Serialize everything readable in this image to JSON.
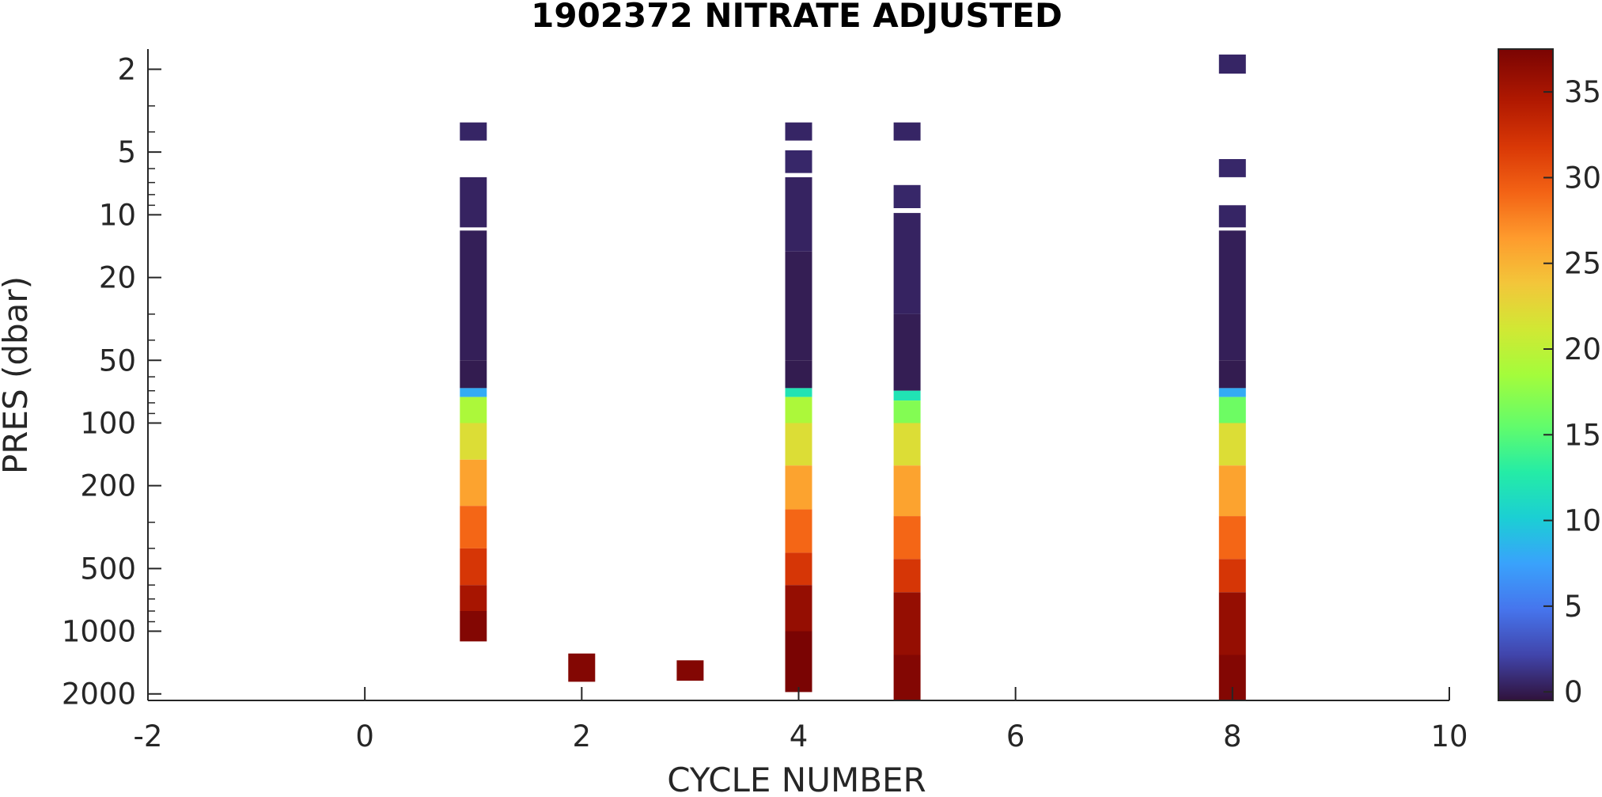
{
  "chart_data": {
    "type": "heatmap",
    "title": "1902372  NITRATE ADJUSTED",
    "xlabel": "CYCLE NUMBER",
    "ylabel": "PRES (dbar)",
    "xlim": [
      -2,
      10
    ],
    "ylim": [
      1.6,
      2150
    ],
    "y_scale": "log",
    "y_reversed": true,
    "x_ticks": [
      -2,
      0,
      2,
      4,
      6,
      8,
      10
    ],
    "x_tick_labels": [
      "-2",
      "0",
      "2",
      "4",
      "6",
      "8",
      "10"
    ],
    "y_ticks": [
      2,
      5,
      10,
      20,
      50,
      100,
      200,
      500,
      1000,
      2000
    ],
    "y_tick_labels": [
      "2",
      "5",
      "10",
      "20",
      "50",
      "100",
      "200",
      "500",
      "1000",
      "2000"
    ],
    "colorbar": {
      "clim": [
        -0.5,
        37.5
      ],
      "ticks": [
        0,
        5,
        10,
        15,
        20,
        25,
        30,
        35
      ],
      "tick_labels": [
        "0",
        "5",
        "10",
        "15",
        "20",
        "25",
        "30",
        "35"
      ],
      "colormap": "turbo",
      "location": "right"
    },
    "profiles": [
      {
        "cycle": 1,
        "segments": [
          {
            "p_top": 3.6,
            "p_bot": 4.4,
            "value": 0.5
          },
          {
            "p_top": 6.6,
            "p_bot": 11.5,
            "value": 0.4
          },
          {
            "p_top": 11.9,
            "p_bot": 50,
            "value": 0.2
          },
          {
            "p_top": 50,
            "p_bot": 68,
            "value": 0.0
          },
          {
            "p_top": 68,
            "p_bot": 75,
            "value": 8
          },
          {
            "p_top": 75,
            "p_bot": 100,
            "value": 19
          },
          {
            "p_top": 100,
            "p_bot": 150,
            "value": 22
          },
          {
            "p_top": 150,
            "p_bot": 250,
            "value": 26
          },
          {
            "p_top": 250,
            "p_bot": 400,
            "value": 29
          },
          {
            "p_top": 400,
            "p_bot": 600,
            "value": 32
          },
          {
            "p_top": 600,
            "p_bot": 800,
            "value": 35
          },
          {
            "p_top": 800,
            "p_bot": 1120,
            "value": 37
          }
        ]
      },
      {
        "cycle": 2,
        "segments": [
          {
            "p_top": 1280,
            "p_bot": 1750,
            "value": 37
          }
        ]
      },
      {
        "cycle": 3,
        "segments": [
          {
            "p_top": 1380,
            "p_bot": 1730,
            "value": 37
          }
        ]
      },
      {
        "cycle": 4,
        "segments": [
          {
            "p_top": 3.6,
            "p_bot": 4.4,
            "value": 0.5
          },
          {
            "p_top": 4.9,
            "p_bot": 6.3,
            "value": 0.6
          },
          {
            "p_top": 6.6,
            "p_bot": 15,
            "value": 0.4
          },
          {
            "p_top": 15,
            "p_bot": 50,
            "value": 0.1
          },
          {
            "p_top": 50,
            "p_bot": 68,
            "value": 0.0
          },
          {
            "p_top": 68,
            "p_bot": 75,
            "value": 12
          },
          {
            "p_top": 75,
            "p_bot": 100,
            "value": 19
          },
          {
            "p_top": 100,
            "p_bot": 160,
            "value": 22
          },
          {
            "p_top": 160,
            "p_bot": 260,
            "value": 26
          },
          {
            "p_top": 260,
            "p_bot": 420,
            "value": 29
          },
          {
            "p_top": 420,
            "p_bot": 600,
            "value": 32
          },
          {
            "p_top": 600,
            "p_bot": 1000,
            "value": 36
          },
          {
            "p_top": 1000,
            "p_bot": 1960,
            "value": 38
          }
        ]
      },
      {
        "cycle": 5,
        "segments": [
          {
            "p_top": 3.6,
            "p_bot": 4.4,
            "value": 0.5
          },
          {
            "p_top": 7.2,
            "p_bot": 9.3,
            "value": 0.6
          },
          {
            "p_top": 9.8,
            "p_bot": 30,
            "value": 0.4
          },
          {
            "p_top": 30,
            "p_bot": 70,
            "value": 0.1
          },
          {
            "p_top": 70,
            "p_bot": 78,
            "value": 12
          },
          {
            "p_top": 78,
            "p_bot": 100,
            "value": 17
          },
          {
            "p_top": 100,
            "p_bot": 160,
            "value": 22
          },
          {
            "p_top": 160,
            "p_bot": 280,
            "value": 26
          },
          {
            "p_top": 280,
            "p_bot": 450,
            "value": 29
          },
          {
            "p_top": 450,
            "p_bot": 650,
            "value": 32
          },
          {
            "p_top": 650,
            "p_bot": 1300,
            "value": 36
          },
          {
            "p_top": 1300,
            "p_bot": 2150,
            "value": 37
          }
        ]
      },
      {
        "cycle": 8,
        "segments": [
          {
            "p_top": 1.7,
            "p_bot": 2.1,
            "value": 0.5
          },
          {
            "p_top": 5.4,
            "p_bot": 6.6,
            "value": 0.6
          },
          {
            "p_top": 9.0,
            "p_bot": 11.5,
            "value": 0.5
          },
          {
            "p_top": 11.9,
            "p_bot": 50,
            "value": 0.2
          },
          {
            "p_top": 50,
            "p_bot": 68,
            "value": 0.0
          },
          {
            "p_top": 68,
            "p_bot": 75,
            "value": 8
          },
          {
            "p_top": 75,
            "p_bot": 100,
            "value": 16
          },
          {
            "p_top": 100,
            "p_bot": 160,
            "value": 22
          },
          {
            "p_top": 160,
            "p_bot": 280,
            "value": 26
          },
          {
            "p_top": 280,
            "p_bot": 450,
            "value": 29
          },
          {
            "p_top": 450,
            "p_bot": 650,
            "value": 32
          },
          {
            "p_top": 650,
            "p_bot": 1300,
            "value": 36
          },
          {
            "p_top": 1300,
            "p_bot": 2150,
            "value": 37
          }
        ]
      }
    ]
  },
  "colors": {
    "axis": "#262626",
    "background": "#ffffff"
  }
}
